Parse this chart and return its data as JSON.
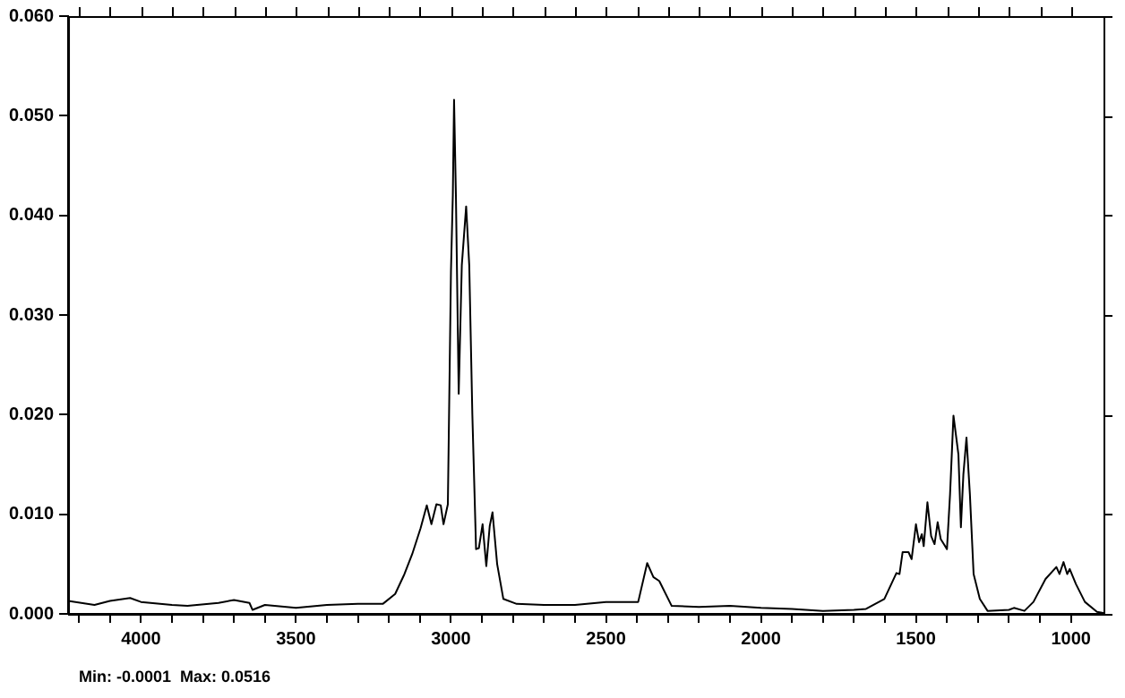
{
  "chart_data": {
    "type": "line",
    "annotations": [
      "Min: -0.0001  Max: 0.0516"
    ],
    "x": [
      4235,
      4150,
      4100,
      4035,
      4000,
      3900,
      3850,
      3750,
      3700,
      3650,
      3640,
      3600,
      3500,
      3400,
      3300,
      3220,
      3180,
      3150,
      3125,
      3098,
      3078,
      3063,
      3047,
      3033,
      3024,
      3010,
      3000,
      2994,
      2990,
      2984,
      2975,
      2965,
      2951,
      2941,
      2931,
      2919,
      2910,
      2898,
      2886,
      2875,
      2866,
      2851,
      2831,
      2788,
      2700,
      2600,
      2500,
      2396,
      2367,
      2347,
      2328,
      2288,
      2200,
      2100,
      2000,
      1900,
      1800,
      1700,
      1661,
      1602,
      1563,
      1553,
      1543,
      1524,
      1514,
      1500,
      1490,
      1481,
      1475,
      1463,
      1451,
      1440,
      1430,
      1420,
      1410,
      1400,
      1390,
      1379,
      1363,
      1355,
      1347,
      1337,
      1326,
      1314,
      1294,
      1269,
      1200,
      1184,
      1150,
      1121,
      1082,
      1047,
      1037,
      1024,
      1012,
      1004,
      984,
      955,
      916,
      895
    ],
    "series": [
      {
        "color": "#000000",
        "values": [
          0.0013,
          0.0009,
          0.0013,
          0.0016,
          0.0012,
          0.0009,
          0.0008,
          0.0011,
          0.0014,
          0.0011,
          0.0004,
          0.0009,
          0.0006,
          0.0009,
          0.001,
          0.001,
          0.002,
          0.004,
          0.006,
          0.0086,
          0.0109,
          0.009,
          0.011,
          0.0109,
          0.009,
          0.011,
          0.0344,
          0.042,
          0.0516,
          0.042,
          0.0221,
          0.035,
          0.0409,
          0.035,
          0.02,
          0.0065,
          0.0066,
          0.009,
          0.0048,
          0.0088,
          0.0102,
          0.005,
          0.0015,
          0.001,
          0.0009,
          0.0009,
          0.0012,
          0.0012,
          0.0051,
          0.0037,
          0.0033,
          0.0008,
          0.0007,
          0.0008,
          0.0006,
          0.0005,
          0.0003,
          0.0004,
          0.0005,
          0.0015,
          0.0041,
          0.004,
          0.0062,
          0.0062,
          0.0055,
          0.009,
          0.0072,
          0.008,
          0.0068,
          0.0112,
          0.0078,
          0.007,
          0.0092,
          0.0075,
          0.007,
          0.0065,
          0.012,
          0.0199,
          0.016,
          0.0087,
          0.014,
          0.0177,
          0.012,
          0.004,
          0.0015,
          0.0003,
          0.0004,
          0.0006,
          0.0003,
          0.0012,
          0.0035,
          0.0047,
          0.004,
          0.0052,
          0.004,
          0.0045,
          0.003,
          0.0012,
          0.0002,
          0.0001
        ]
      }
    ],
    "xlim": [
      4235,
      895
    ],
    "xticks": [
      {
        "value": 4200,
        "label": null
      },
      {
        "value": 4100,
        "label": null
      },
      4000,
      {
        "value": 3900,
        "label": null
      },
      {
        "value": 3800,
        "label": null
      },
      {
        "value": 3700,
        "label": null
      },
      {
        "value": 3600,
        "label": null
      },
      3500,
      {
        "value": 3400,
        "label": null
      },
      {
        "value": 3300,
        "label": null
      },
      {
        "value": 3200,
        "label": null
      },
      {
        "value": 3100,
        "label": null
      },
      3000,
      {
        "value": 2900,
        "label": null
      },
      {
        "value": 2800,
        "label": null
      },
      {
        "value": 2700,
        "label": null
      },
      {
        "value": 2600,
        "label": null
      },
      2500,
      {
        "value": 2400,
        "label": null
      },
      {
        "value": 2300,
        "label": null
      },
      {
        "value": 2200,
        "label": null
      },
      {
        "value": 2100,
        "label": null
      },
      2000,
      {
        "value": 1900,
        "label": null
      },
      {
        "value": 1800,
        "label": null
      },
      {
        "value": 1700,
        "label": null
      },
      {
        "value": 1600,
        "label": null
      },
      1500,
      {
        "value": 1400,
        "label": null
      },
      {
        "value": 1300,
        "label": null
      },
      {
        "value": 1200,
        "label": null
      },
      {
        "value": 1100,
        "label": null
      },
      1000
    ],
    "ylim": [
      0,
      0.06
    ],
    "yticks": [
      {
        "value": 0,
        "label": "0.000"
      },
      {
        "value": 0.01,
        "label": "0.010"
      },
      {
        "value": 0.02,
        "label": "0.020"
      },
      {
        "value": 0.03,
        "label": "0.030"
      },
      {
        "value": 0.04,
        "label": "0.040"
      },
      {
        "value": 0.05,
        "label": "0.050"
      },
      {
        "value": 0.06,
        "label": "0.060"
      }
    ],
    "grid": false,
    "legend": false,
    "marker": "none",
    "line_style": "solid"
  }
}
